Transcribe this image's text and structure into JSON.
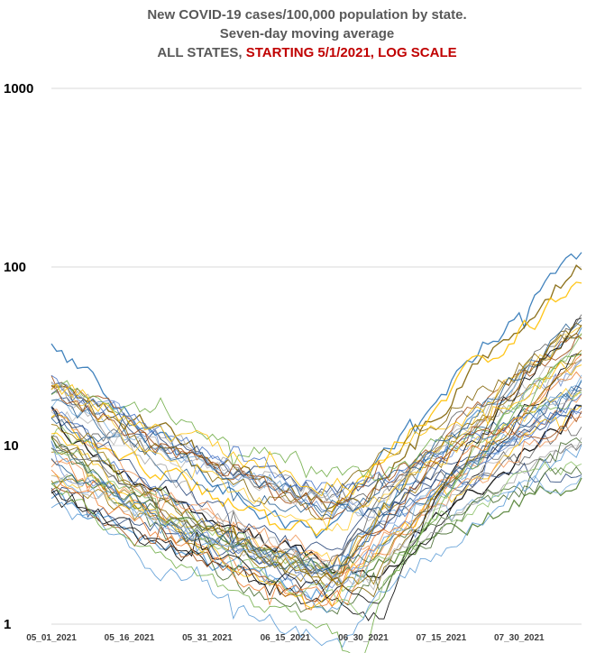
{
  "chart_data": {
    "type": "line",
    "title_lines": [
      {
        "text": "New COVID-19 cases/100,000 population by state."
      },
      {
        "text": "Seven-day moving average"
      },
      {
        "prefix": "ALL STATES, ",
        "highlight": "STARTING 5/1/2021, LOG SCALE"
      }
    ],
    "y_scale": "log",
    "ylim": [
      1,
      1000
    ],
    "y_ticks": [
      "1",
      "10",
      "100",
      "1000"
    ],
    "x_tick_labels": [
      "05_01_2021",
      "05_16_2021",
      "05_31_2021",
      "06_15_2021",
      "06_30_2021",
      "07_15_2021",
      "07_30_2021"
    ],
    "x_range_days": [
      0,
      102
    ],
    "grid": "horizontal",
    "legend": "none",
    "series_count": 51,
    "key_series_profiles": [
      {
        "color": "#2e75b6",
        "start": 40,
        "min": 3.0,
        "end": 120
      },
      {
        "color": "#7f6000",
        "start": 25,
        "min": 4.5,
        "end": 100
      },
      {
        "color": "#ffc000",
        "start": 15,
        "min": 3.5,
        "end": 80
      },
      {
        "color": "#000000",
        "start": 13,
        "min": 1.8,
        "end": 15
      },
      {
        "color": "#548235",
        "start": 7,
        "min": 2.0,
        "end": 6.3
      },
      {
        "color": "#5b9bd5",
        "start": 5,
        "min": 1.6,
        "end": 45
      }
    ],
    "palette": [
      "#4472c4",
      "#ed7d31",
      "#a5a5a5",
      "#ffc000",
      "#5b9bd5",
      "#70ad47",
      "#264478",
      "#9e480e",
      "#636363",
      "#997300",
      "#255e91",
      "#43682b",
      "#698ed0",
      "#f1975a",
      "#b7b7b7",
      "#ffcd33",
      "#7cafdd",
      "#8cc168",
      "#000000",
      "#7f6000"
    ]
  }
}
